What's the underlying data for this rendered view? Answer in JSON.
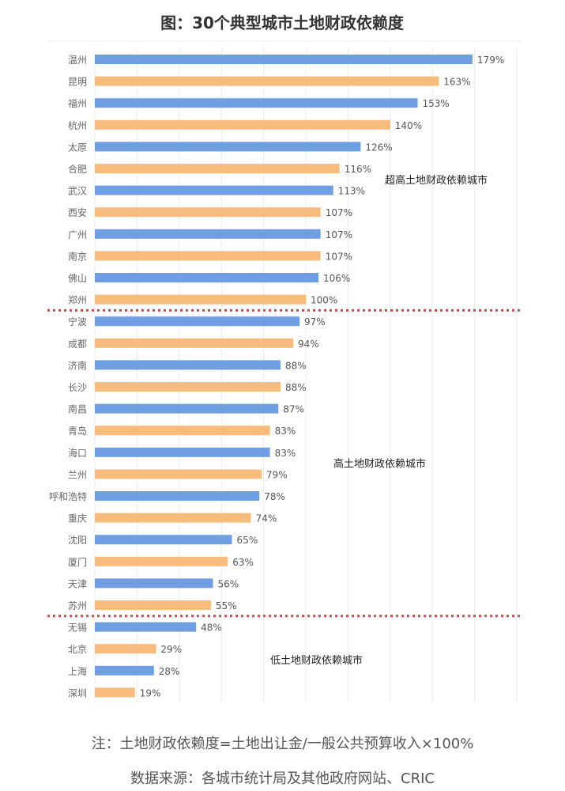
{
  "chart_data": {
    "type": "bar",
    "orientation": "horizontal",
    "title": "图：30个典型城市土地财政依赖度",
    "unit": "%",
    "xlim": [
      0,
      200
    ],
    "grid": "vertical",
    "categories": [
      "温州",
      "昆明",
      "福州",
      "杭州",
      "太原",
      "合肥",
      "武汉",
      "西安",
      "广州",
      "南京",
      "佛山",
      "郑州",
      "宁波",
      "成都",
      "济南",
      "长沙",
      "南昌",
      "青岛",
      "海口",
      "兰州",
      "呼和浩特",
      "重庆",
      "沈阳",
      "厦门",
      "天津",
      "苏州",
      "无锡",
      "北京",
      "上海",
      "深圳"
    ],
    "values": [
      179,
      163,
      153,
      140,
      126,
      116,
      113,
      107,
      107,
      107,
      106,
      100,
      97,
      94,
      88,
      88,
      87,
      83,
      83,
      79,
      78,
      74,
      65,
      63,
      56,
      55,
      48,
      29,
      28,
      19
    ],
    "value_labels": [
      "179%",
      "163%",
      "153%",
      "140%",
      "126%",
      "116%",
      "113%",
      "107%",
      "107%",
      "107%",
      "106%",
      "100%",
      "97%",
      "94%",
      "88%",
      "88%",
      "87%",
      "83%",
      "83%",
      "79%",
      "78%",
      "74%",
      "65%",
      "63%",
      "56%",
      "55%",
      "48%",
      "29%",
      "28%",
      "19%"
    ],
    "bar_colors": [
      "#6f9ee2",
      "#f7bb7d"
    ],
    "separator_color": "#c0504d",
    "groups": [
      {
        "label": "超高土地财政依赖城市",
        "start": 0,
        "end": 11
      },
      {
        "label": "高土地财政依赖城市",
        "start": 12,
        "end": 25
      },
      {
        "label": "低土地财政依赖城市",
        "start": 26,
        "end": 29
      }
    ]
  },
  "footer": {
    "note": "注：土地财政依赖度=土地出让金/一般公共预算收入×100%",
    "source": "数据来源：各城市统计局及其他政府网站、CRIC"
  }
}
